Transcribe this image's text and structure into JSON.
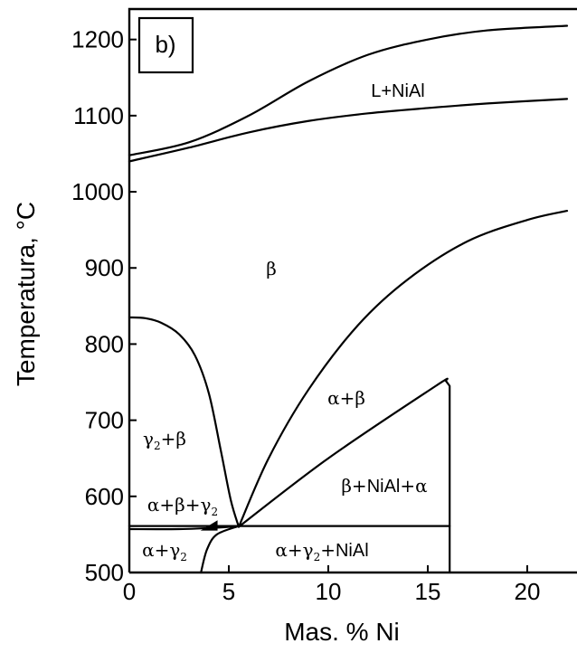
{
  "chart_data": {
    "type": "line",
    "title": "",
    "panel_label": "b)",
    "xlabel": "Mas. % Ni",
    "ylabel": "Temperatura, °C",
    "xlim": [
      0,
      22.5
    ],
    "ylim": [
      500,
      1240
    ],
    "x_ticks": [
      0,
      5,
      10,
      15,
      20
    ],
    "x_tick_labels": [
      "0",
      "5",
      "10",
      "15",
      "20"
    ],
    "y_ticks": [
      500,
      600,
      700,
      800,
      900,
      1000,
      1100,
      1200
    ],
    "y_tick_labels": [
      "500",
      "600",
      "700",
      "800",
      "900",
      "1000",
      "1100",
      "1200"
    ],
    "grid": false,
    "series": [
      {
        "points": [
          [
            0,
            1048
          ],
          [
            3,
            1065
          ],
          [
            6,
            1100
          ],
          [
            9,
            1145
          ],
          [
            12,
            1180
          ],
          [
            15,
            1200
          ],
          [
            18,
            1212
          ],
          [
            22,
            1218
          ]
        ]
      },
      {
        "points": [
          [
            0,
            1040
          ],
          [
            3,
            1058
          ],
          [
            6,
            1078
          ],
          [
            9,
            1093
          ],
          [
            12,
            1103
          ],
          [
            15,
            1110
          ],
          [
            18,
            1116
          ],
          [
            22,
            1122
          ]
        ]
      },
      {
        "points": [
          [
            0,
            835
          ],
          [
            0.8,
            834
          ],
          [
            1.6,
            828
          ],
          [
            2.5,
            813
          ],
          [
            3.3,
            785
          ],
          [
            4.0,
            735
          ],
          [
            4.6,
            660
          ],
          [
            5.1,
            595
          ],
          [
            5.5,
            560
          ]
        ]
      },
      {
        "points": [
          [
            5.5,
            560
          ],
          [
            7,
            650
          ],
          [
            9,
            740
          ],
          [
            11.5,
            825
          ],
          [
            14,
            885
          ],
          [
            17,
            935
          ],
          [
            20,
            963
          ],
          [
            22,
            975
          ]
        ]
      },
      {
        "points": [
          [
            5.5,
            560
          ],
          [
            10,
            650
          ],
          [
            15.4,
            745
          ],
          [
            15.9,
            752
          ],
          [
            16.1,
            745
          ],
          [
            16.1,
            500
          ]
        ]
      },
      {
        "points": [
          [
            0,
            561
          ],
          [
            16.1,
            561
          ]
        ]
      },
      {
        "points": [
          [
            0,
            557
          ],
          [
            2.5,
            557
          ],
          [
            4.5,
            559
          ],
          [
            5.5,
            561
          ]
        ]
      },
      {
        "points": [
          [
            3.6,
            500
          ],
          [
            3.9,
            530
          ],
          [
            4.4,
            550
          ],
          [
            5.5,
            561
          ]
        ]
      },
      {
        "points": [
          [
            3.7,
            556
          ],
          [
            4.4,
            567
          ],
          [
            4.4,
            556
          ]
        ]
      }
    ],
    "annotations": [
      {
        "label": "L+NiAl",
        "font": "sans",
        "x": 11.5,
        "y": 1128
      },
      {
        "label": "β",
        "font": "serif",
        "x": 7.2,
        "y": 900
      },
      {
        "label": "α+β",
        "font": "serif",
        "x": 11.5,
        "y": 723
      },
      {
        "label": "β+NiAl+α",
        "font": "mixed",
        "x": 12.7,
        "y": 622
      },
      {
        "label": "γ₂+β",
        "font": "serif",
        "x": 1.7,
        "y": 687
      },
      {
        "label": "α+β+γ₂",
        "font": "serif",
        "x": 2.6,
        "y": 593
      },
      {
        "label": "α+γ₂",
        "font": "serif",
        "x": 1.7,
        "y": 524
      },
      {
        "label": "α+γ₂+NiAl",
        "font": "mixed",
        "x": 9.8,
        "y": 524
      }
    ]
  }
}
